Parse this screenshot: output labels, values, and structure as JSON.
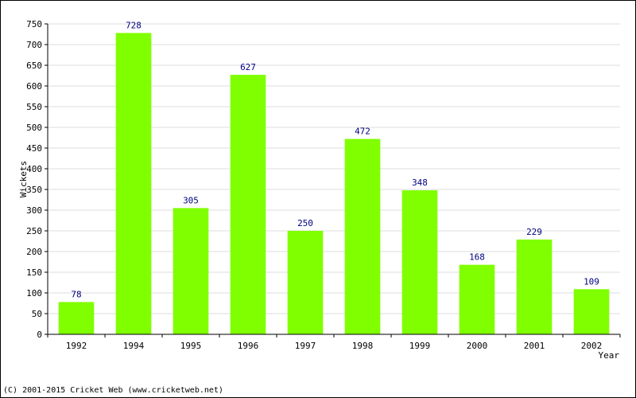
{
  "chart_data": {
    "type": "bar",
    "categories": [
      "1992",
      "1994",
      "1995",
      "1996",
      "1997",
      "1998",
      "1999",
      "2000",
      "2001",
      "2002"
    ],
    "values": [
      78,
      728,
      305,
      627,
      250,
      472,
      348,
      168,
      229,
      109
    ],
    "title": "",
    "xlabel": "Year",
    "ylabel": "Wickets",
    "ylim": [
      0,
      750
    ],
    "yticks": [
      0,
      50,
      100,
      150,
      200,
      250,
      300,
      350,
      400,
      450,
      500,
      550,
      600,
      650,
      700,
      750
    ],
    "grid": true,
    "data_labels": true
  },
  "colors": {
    "bar": "#80ff00",
    "value_label": "#000080",
    "grid": "#dddddd",
    "axis": "#000000"
  },
  "footer": {
    "text": "(C) 2001-2015 Cricket Web (www.cricketweb.net)"
  }
}
